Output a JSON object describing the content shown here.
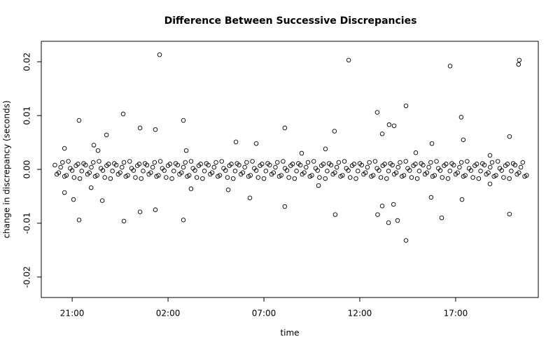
{
  "chart_data": {
    "type": "scatter",
    "title": "Difference Between Successive Discrepancies",
    "x_label": "time",
    "y_label": "change in discrepancy (seconds)",
    "color": "#000000",
    "xlim": [
      19.39,
      45.31
    ],
    "ylim": [
      -0.0238,
      0.0238
    ],
    "xticks": [
      {
        "value": 21,
        "label": "21:00"
      },
      {
        "value": 26,
        "label": "02:00"
      },
      {
        "value": 31,
        "label": "07:00"
      },
      {
        "value": 36,
        "label": "12:00"
      },
      {
        "value": 41,
        "label": "17:00"
      }
    ],
    "yticks": [
      -0.02,
      -0.01,
      {
        "value": 0,
        "label": "0.00"
      },
      0.01,
      0.02
    ],
    "x": [
      20.1,
      20.2,
      20.3,
      20.4,
      20.5,
      20.6,
      20.7,
      20.8,
      20.9,
      21.0,
      21.1,
      21.2,
      21.3,
      21.4,
      21.5,
      21.6,
      21.7,
      21.8,
      21.9,
      22.0,
      22.1,
      22.2,
      22.3,
      22.4,
      22.5,
      22.6,
      22.7,
      22.8,
      22.9,
      23.0,
      23.1,
      23.2,
      23.3,
      23.4,
      23.5,
      23.6,
      23.7,
      23.8,
      23.9,
      24.0,
      24.1,
      24.2,
      24.3,
      24.4,
      24.5,
      24.6,
      24.7,
      24.8,
      24.9,
      25.0,
      25.1,
      25.2,
      25.3,
      25.4,
      25.5,
      25.6,
      25.7,
      25.8,
      25.9,
      26.0,
      26.1,
      26.2,
      26.3,
      26.4,
      26.5,
      26.6,
      26.7,
      26.8,
      26.9,
      27.0,
      27.1,
      27.2,
      27.3,
      27.4,
      27.5,
      27.6,
      27.7,
      27.8,
      27.9,
      28.0,
      28.1,
      28.2,
      28.3,
      28.4,
      28.5,
      28.6,
      28.7,
      28.8,
      28.9,
      29.0,
      29.1,
      29.2,
      29.3,
      29.4,
      29.5,
      29.6,
      29.7,
      29.8,
      29.9,
      30.0,
      30.1,
      30.2,
      30.3,
      30.4,
      30.5,
      30.6,
      30.7,
      30.8,
      30.9,
      31.0,
      31.1,
      31.2,
      31.3,
      31.4,
      31.5,
      31.6,
      31.7,
      31.8,
      31.9,
      32.0,
      32.1,
      32.2,
      32.3,
      32.4,
      32.5,
      32.6,
      32.7,
      32.8,
      32.9,
      33.0,
      33.1,
      33.2,
      33.3,
      33.4,
      33.5,
      33.6,
      33.7,
      33.8,
      33.9,
      34.0,
      34.1,
      34.2,
      34.3,
      34.4,
      34.5,
      34.6,
      34.7,
      34.8,
      34.9,
      35.0,
      35.1,
      35.2,
      35.3,
      35.4,
      35.5,
      35.6,
      35.7,
      35.8,
      35.9,
      36.0,
      36.1,
      36.2,
      36.3,
      36.4,
      36.5,
      36.6,
      36.7,
      36.8,
      36.9,
      37.0,
      37.1,
      37.2,
      37.3,
      37.4,
      37.5,
      37.6,
      37.7,
      37.8,
      37.9,
      38.0,
      38.1,
      38.2,
      38.3,
      38.4,
      38.5,
      38.6,
      38.7,
      38.8,
      38.9,
      39.0,
      39.1,
      39.2,
      39.3,
      39.4,
      39.5,
      39.6,
      39.7,
      39.8,
      39.9,
      40.0,
      40.1,
      40.2,
      40.3,
      40.4,
      40.5,
      40.6,
      40.7,
      40.8,
      40.9,
      41.0,
      41.1,
      41.2,
      41.3,
      41.4,
      41.5,
      41.6,
      41.7,
      41.8,
      41.9,
      42.0,
      42.1,
      42.2,
      42.3,
      42.4,
      42.5,
      42.6,
      42.7,
      42.8,
      42.9,
      43.0,
      43.1,
      43.2,
      43.3,
      43.4,
      43.5,
      43.6,
      43.7,
      43.8,
      43.9,
      44.0,
      44.1,
      44.2,
      44.3,
      44.4,
      44.5,
      44.6,
      44.7,
      25.56,
      35.42,
      40.71,
      44.32,
      44.28,
      21.36,
      23.66,
      26.8,
      38.41,
      36.91,
      41.29,
      32.09,
      43.81,
      34.68,
      24.54,
      25.34,
      22.79,
      37.53,
      37.79,
      37.17,
      41.4,
      20.6,
      22.13,
      29.54,
      30.6,
      34.21,
      38.92,
      39.76,
      42.79,
      26.95,
      32.97,
      22.35,
      21.36,
      23.7,
      26.8,
      38.41,
      37.5,
      40.27,
      43.81,
      34.72,
      36.93,
      37.17,
      37.76,
      37.97,
      24.54,
      25.34,
      32.09,
      22.57,
      21.07,
      41.33,
      39.72,
      30.27,
      27.2,
      33.85,
      42.79,
      20.6,
      21.99,
      29.14
    ],
    "y": [
      0.0008,
      -0.0009,
      -0.0006,
      0.0004,
      0.0013,
      -0.0013,
      -0.0011,
      0.0015,
      0.0002,
      -0.0002,
      -0.0015,
      0.0007,
      0.001,
      -0.0017,
      -0.0003,
      0.0011,
      0.0008,
      -0.0009,
      -0.0006,
      0.0004,
      0.0013,
      -0.0013,
      -0.0011,
      0.0015,
      0.0002,
      -0.0002,
      -0.0015,
      0.0007,
      0.001,
      -0.0017,
      -0.0003,
      0.0011,
      0.0008,
      -0.0009,
      -0.0006,
      0.0004,
      0.0013,
      -0.0013,
      -0.0011,
      0.0015,
      0.0002,
      -0.0002,
      -0.0015,
      0.0007,
      0.001,
      -0.0017,
      -0.0003,
      0.0011,
      0.0008,
      -0.0009,
      -0.0006,
      0.0004,
      0.0013,
      -0.0013,
      -0.0011,
      0.0015,
      0.0002,
      -0.0002,
      -0.0015,
      0.0007,
      0.001,
      -0.0017,
      -0.0003,
      0.0011,
      0.0008,
      -0.0009,
      -0.0006,
      0.0004,
      0.0013,
      -0.0013,
      -0.0011,
      0.0015,
      0.0002,
      -0.0002,
      -0.0015,
      0.0007,
      0.001,
      -0.0017,
      -0.0003,
      0.0011,
      0.0008,
      -0.0009,
      -0.0006,
      0.0004,
      0.0013,
      -0.0013,
      -0.0011,
      0.0015,
      0.0002,
      -0.0002,
      -0.0015,
      0.0007,
      0.001,
      -0.0017,
      -0.0003,
      0.0011,
      0.0008,
      -0.0009,
      -0.0006,
      0.0004,
      0.0013,
      -0.0013,
      -0.0011,
      0.0015,
      0.0002,
      -0.0002,
      -0.0015,
      0.0007,
      0.001,
      -0.0017,
      -0.0003,
      0.0011,
      0.0008,
      -0.0009,
      -0.0006,
      0.0004,
      0.0013,
      -0.0013,
      -0.0011,
      0.0015,
      0.0002,
      -0.0002,
      -0.0015,
      0.0007,
      0.001,
      -0.0017,
      -0.0003,
      0.0011,
      0.0008,
      -0.0009,
      -0.0006,
      0.0004,
      0.0013,
      -0.0013,
      -0.0011,
      0.0015,
      0.0002,
      -0.0002,
      -0.0015,
      0.0007,
      0.001,
      -0.0017,
      -0.0003,
      0.0011,
      0.0008,
      -0.0009,
      -0.0006,
      0.0004,
      0.0013,
      -0.0013,
      -0.0011,
      0.0015,
      0.0002,
      -0.0002,
      -0.0015,
      0.0007,
      0.001,
      -0.0017,
      -0.0003,
      0.0011,
      0.0008,
      -0.0009,
      -0.0006,
      0.0004,
      0.0013,
      -0.0013,
      -0.0011,
      0.0015,
      0.0002,
      -0.0002,
      -0.0015,
      0.0007,
      0.001,
      -0.0017,
      -0.0003,
      0.0011,
      0.0008,
      -0.0009,
      -0.0006,
      0.0004,
      0.0013,
      -0.0013,
      -0.0011,
      0.0015,
      0.0002,
      -0.0002,
      -0.0015,
      0.0007,
      0.001,
      -0.0017,
      -0.0003,
      0.0011,
      0.0008,
      -0.0009,
      -0.0006,
      0.0004,
      0.0013,
      -0.0013,
      -0.0011,
      0.0015,
      0.0002,
      -0.0002,
      -0.0015,
      0.0007,
      0.001,
      -0.0017,
      -0.0003,
      0.0011,
      0.0008,
      -0.0009,
      -0.0006,
      0.0004,
      0.0013,
      -0.0013,
      -0.0011,
      0.0015,
      0.0002,
      -0.0002,
      -0.0015,
      0.0007,
      0.001,
      -0.0017,
      -0.0003,
      0.0011,
      0.0008,
      -0.0009,
      -0.0006,
      0.0004,
      0.0013,
      -0.0013,
      -0.0011,
      0.0015,
      0.0002,
      -0.0002,
      -0.0015,
      0.0007,
      0.001,
      -0.0017,
      -0.0003,
      0.0011,
      0.0008,
      -0.0009,
      -0.0006,
      0.0004,
      0.0013,
      -0.0013,
      -0.0011,
      0.0213,
      0.0203,
      0.0192,
      0.0203,
      0.0195,
      0.0091,
      0.0103,
      0.0091,
      0.0118,
      0.0106,
      0.0097,
      0.0077,
      0.0061,
      0.0071,
      0.0077,
      0.0074,
      0.0064,
      0.0083,
      0.0081,
      0.0066,
      0.0055,
      0.0039,
      0.0045,
      0.0051,
      0.0048,
      0.0038,
      0.0031,
      0.0048,
      0.0026,
      0.0035,
      0.003,
      0.0035,
      -0.0094,
      -0.0096,
      -0.0094,
      -0.0132,
      -0.0099,
      -0.009,
      -0.0083,
      -0.0084,
      -0.0084,
      -0.0068,
      -0.0065,
      -0.0095,
      -0.0079,
      -0.0075,
      -0.0069,
      -0.0058,
      -0.0056,
      -0.0056,
      -0.0052,
      -0.0053,
      -0.0036,
      -0.003,
      -0.0027,
      -0.0043,
      -0.0034,
      -0.0038
    ]
  }
}
